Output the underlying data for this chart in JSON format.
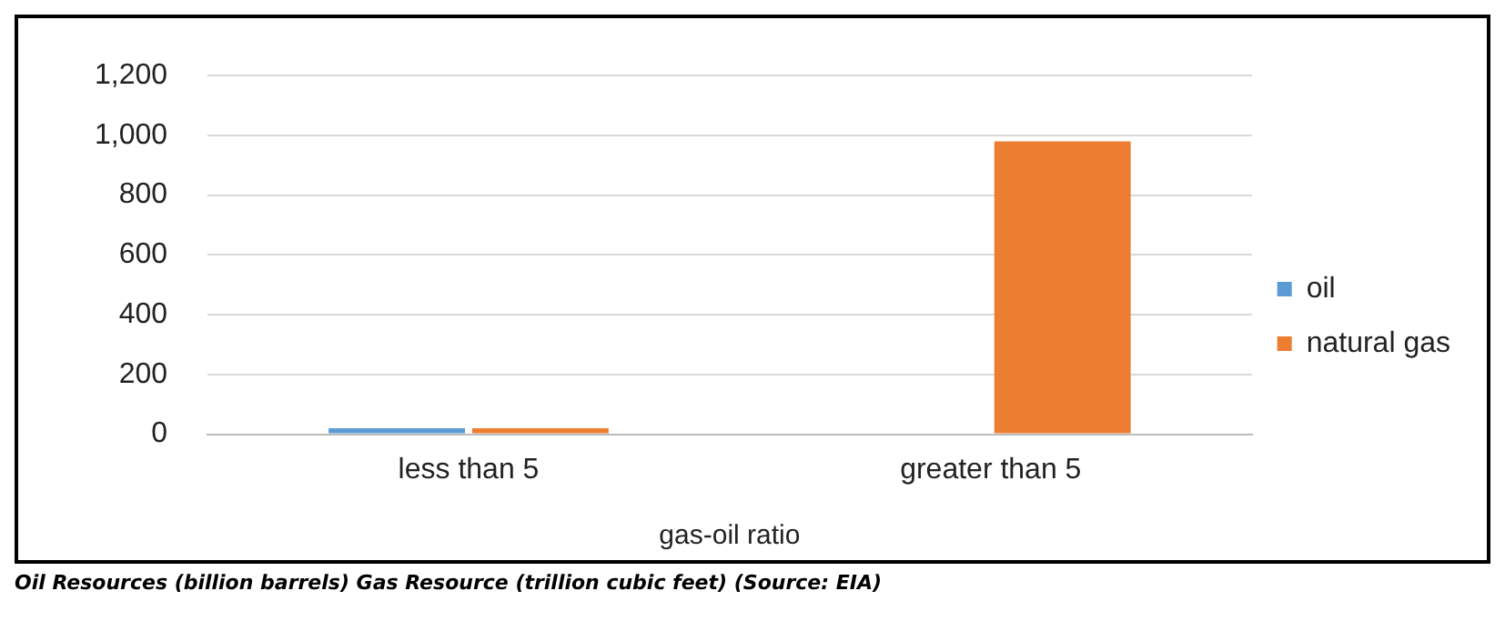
{
  "chart_data": {
    "type": "bar",
    "categories": [
      "less than 5",
      "greater than 5"
    ],
    "series": [
      {
        "name": "oil",
        "color": "#5b9bd5",
        "values": [
          20,
          0
        ]
      },
      {
        "name": "natural gas",
        "color": "#ed7d31",
        "values": [
          20,
          980
        ]
      }
    ],
    "xlabel": "gas-oil ratio",
    "ylim": [
      0,
      1200
    ],
    "yticks": [
      0,
      200,
      400,
      600,
      800,
      {
        "value": 1000,
        "label": "1,000"
      },
      {
        "value": 1200,
        "label": "1,200"
      }
    ],
    "grid": "y",
    "legend": "right",
    "annotations": [
      "Oil Resources (billion barrels) Gas Resource (trillion cubic feet) (Source: EIA)"
    ]
  }
}
